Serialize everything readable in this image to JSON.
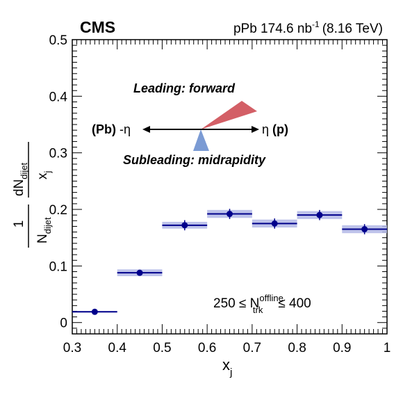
{
  "header": {
    "experiment": "CMS",
    "dataset_prefix": "pPb 174.6 nb",
    "dataset_sup": "-1",
    "dataset_energy": "(8.16 TeV)"
  },
  "diagram": {
    "leading_label": "Leading: forward",
    "subleading_label": "Subleading: midrapidity",
    "left_label_bold": "(Pb)",
    "left_label_eta": "-η",
    "right_label_eta": "η",
    "right_label_bold": "(p)",
    "leading_color": "#d35f66",
    "subleading_color": "#7b9bd4"
  },
  "selection": {
    "left": "250 ≤ N",
    "sup": "offline",
    "sub": "trk",
    "right": "≤ 400"
  },
  "chart_data": {
    "type": "scatter",
    "xlabel_main": "x",
    "xlabel_sub": "j",
    "ylabel": {
      "frac1_num": "1",
      "frac1_den_main": "N",
      "frac1_den_sub": "dijet",
      "frac2_num_main": "dN",
      "frac2_num_sub": "dijet",
      "frac2_den_main": "x",
      "frac2_den_sub": "j"
    },
    "xlim": [
      0.3,
      1.0
    ],
    "ylim": [
      -0.02,
      0.5
    ],
    "x_ticks": [
      "0.3",
      "0.4",
      "0.5",
      "0.6",
      "0.7",
      "0.8",
      "0.9",
      "1"
    ],
    "y_ticks": [
      "0",
      "0.1",
      "0.2",
      "0.3",
      "0.4",
      "0.5"
    ],
    "series": [
      {
        "color": "#00008b",
        "band_color": "#b3b8e6",
        "points": [
          {
            "x_low": 0.3,
            "x_high": 0.4,
            "y": 0.019,
            "stat": 0.002,
            "syst": 0.001
          },
          {
            "x_low": 0.4,
            "x_high": 0.5,
            "y": 0.088,
            "stat": 0.004,
            "syst": 0.006
          },
          {
            "x_low": 0.5,
            "x_high": 0.6,
            "y": 0.172,
            "stat": 0.009,
            "syst": 0.006
          },
          {
            "x_low": 0.6,
            "x_high": 0.7,
            "y": 0.192,
            "stat": 0.009,
            "syst": 0.007
          },
          {
            "x_low": 0.7,
            "x_high": 0.8,
            "y": 0.175,
            "stat": 0.009,
            "syst": 0.007
          },
          {
            "x_low": 0.8,
            "x_high": 0.9,
            "y": 0.19,
            "stat": 0.009,
            "syst": 0.007
          },
          {
            "x_low": 0.9,
            "x_high": 1.0,
            "y": 0.165,
            "stat": 0.009,
            "syst": 0.007
          }
        ]
      }
    ]
  }
}
